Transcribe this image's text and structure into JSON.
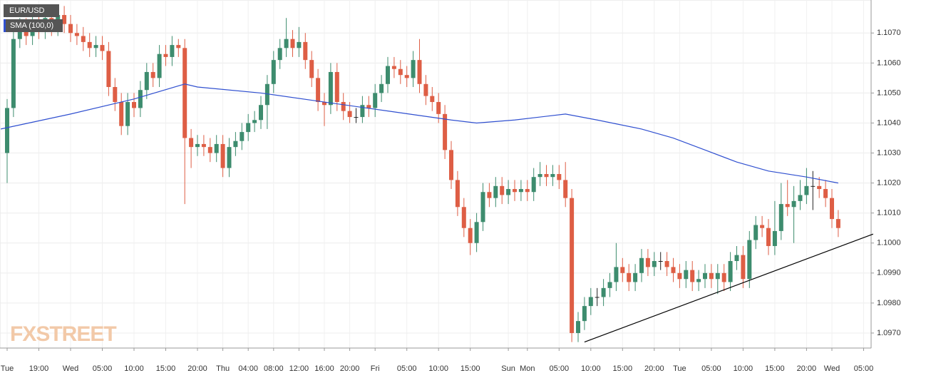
{
  "chart_data": {
    "type": "candlestick",
    "watermark": "FXSTREET",
    "categories": [
      "Tue",
      null,
      null,
      null,
      null,
      "19:00",
      null,
      null,
      null,
      null,
      "Wed",
      null,
      null,
      null,
      null,
      "05:00",
      null,
      null,
      null,
      null,
      "10:00",
      null,
      null,
      null,
      null,
      "15:00",
      null,
      null,
      null,
      null,
      "20:00",
      null,
      null,
      null,
      "Thu",
      null,
      null,
      null,
      "04:00",
      null,
      null,
      null,
      "08:00",
      null,
      null,
      null,
      "12:00",
      null,
      null,
      null,
      "16:00",
      null,
      null,
      null,
      "20:00",
      null,
      null,
      null,
      "Fri",
      null,
      null,
      null,
      null,
      "05:00",
      null,
      null,
      null,
      null,
      "10:00",
      null,
      null,
      null,
      null,
      "15:00",
      null,
      null,
      null,
      null,
      null,
      "Sun",
      null,
      null,
      "Mon",
      null,
      null,
      null,
      null,
      "05:00",
      null,
      null,
      null,
      null,
      "10:00",
      null,
      null,
      null,
      null,
      "15:00",
      null,
      null,
      null,
      null,
      "20:00",
      null,
      null,
      null,
      "Tue",
      null,
      null,
      null,
      null,
      "05:00",
      null,
      null,
      null,
      null,
      "10:00",
      null,
      null,
      null,
      null,
      "15:00",
      null,
      null,
      null,
      null,
      "20:00",
      null,
      null,
      null,
      "Wed",
      null,
      null,
      null,
      null,
      "05:00"
    ],
    "series": [
      {
        "name": "EUR/USD",
        "up_color": "#3d8c6e",
        "down_color": "#de5e45",
        "flat_color": "#222",
        "open": [
          1.103,
          1.1045,
          1.1068,
          1.1072,
          1.1069,
          1.1074,
          1.1071,
          1.1075,
          1.1072,
          1.1076,
          1.1073,
          1.107,
          1.1069,
          1.1067,
          1.1065,
          1.1066,
          1.1064,
          1.1052,
          1.1047,
          1.1039,
          1.1047,
          1.1045,
          1.1051,
          1.1057,
          1.1055,
          1.1063,
          1.1062,
          1.1066,
          1.1065,
          1.1035,
          1.1032,
          1.1033,
          1.1032,
          1.103,
          1.1033,
          1.1025,
          1.1032,
          1.1034,
          1.1037,
          1.104,
          1.1041,
          1.1046,
          1.1053,
          1.1061,
          1.1065,
          1.1068,
          1.1065,
          1.1067,
          1.1061,
          1.1055,
          1.1047,
          1.1046,
          1.1057,
          1.1047,
          1.1044,
          1.1042,
          1.1042,
          1.1046,
          1.1045,
          1.105,
          1.1053,
          1.1059,
          1.1058,
          1.1056,
          1.1055,
          1.1061,
          1.1053,
          1.1049,
          1.1047,
          1.1043,
          1.1031,
          1.1021,
          1.1012,
          1.1005,
          1.1,
          1.1007,
          1.1017,
          1.1015,
          1.1019,
          1.1016,
          1.1018,
          1.1017,
          1.1018,
          1.1017,
          1.1022,
          1.1023,
          1.1022,
          1.1023,
          1.1021,
          1.1015,
          1.097,
          1.0974,
          1.0979,
          1.0982,
          1.0982,
          1.0985,
          1.0987,
          1.0992,
          1.099,
          1.0987,
          1.099,
          1.0995,
          1.0992,
          1.0994,
          1.0994,
          1.0992,
          1.099,
          1.0988,
          1.0991,
          1.0987,
          1.0988,
          1.099,
          1.0988,
          1.099,
          1.0987,
          1.0994,
          1.0996,
          1.0988,
          1.1001,
          1.1006,
          1.1005,
          1.0999,
          1.1004,
          1.1013,
          1.1012,
          1.1014,
          1.1016,
          1.1019,
          1.1019,
          1.1018,
          1.1015,
          1.1008,
          null,
          null,
          null,
          null
        ],
        "high": [
          1.1048,
          1.1071,
          1.1075,
          1.1075,
          1.1077,
          1.1077,
          1.1078,
          1.1078,
          1.1079,
          1.1079,
          1.1076,
          1.1073,
          1.1072,
          1.107,
          1.1069,
          1.1069,
          1.1067,
          1.1055,
          1.105,
          1.105,
          1.105,
          1.1054,
          1.106,
          1.106,
          1.1066,
          1.1066,
          1.1069,
          1.1068,
          1.1068,
          1.1038,
          1.1036,
          1.1036,
          1.1035,
          1.1036,
          1.1036,
          1.1035,
          1.1037,
          1.104,
          1.1043,
          1.1044,
          1.1049,
          1.1056,
          1.1064,
          1.1068,
          1.1075,
          1.1071,
          1.1072,
          1.107,
          1.1064,
          1.1058,
          1.105,
          1.106,
          1.106,
          1.105,
          1.1047,
          1.1045,
          1.1049,
          1.1049,
          1.1053,
          1.1056,
          1.1062,
          1.1062,
          1.1061,
          1.1059,
          1.1064,
          1.1068,
          1.1056,
          1.1052,
          1.105,
          1.1046,
          1.1034,
          1.1024,
          1.1015,
          1.1008,
          1.101,
          1.102,
          1.102,
          1.1022,
          1.1022,
          1.1021,
          1.1021,
          1.1021,
          1.1021,
          1.1025,
          1.1027,
          1.1026,
          1.1026,
          1.1026,
          1.1027,
          1.1018,
          1.0977,
          1.0982,
          1.0985,
          1.0985,
          1.0988,
          1.099,
          1.1,
          1.0995,
          1.0993,
          1.0993,
          1.0998,
          1.0998,
          1.0997,
          1.0997,
          1.0997,
          1.0995,
          1.0993,
          1.0994,
          1.0994,
          1.0991,
          1.0993,
          1.0993,
          1.0993,
          1.0993,
          1.0997,
          1.0999,
          1.0999,
          1.1004,
          1.1009,
          1.1009,
          1.1008,
          1.1014,
          1.102,
          1.1021,
          1.1019,
          1.1021,
          1.1025,
          1.1024,
          1.1022,
          1.1021,
          1.1018,
          1.1011,
          null,
          null,
          null,
          null
        ],
        "low": [
          1.102,
          1.1042,
          1.1065,
          1.1066,
          1.1066,
          1.1068,
          1.1068,
          1.1069,
          1.1069,
          1.107,
          1.1067,
          1.1066,
          1.1064,
          1.1062,
          1.1062,
          1.1061,
          1.1049,
          1.1044,
          1.1036,
          1.1036,
          1.1042,
          1.1042,
          1.1048,
          1.1052,
          1.1052,
          1.1059,
          1.1059,
          1.1062,
          1.1013,
          1.1025,
          1.1029,
          1.1029,
          1.1027,
          1.1027,
          1.1022,
          1.1022,
          1.1029,
          1.1031,
          1.1034,
          1.1037,
          1.1038,
          1.1038,
          1.105,
          1.1058,
          1.1062,
          1.1062,
          1.1062,
          1.1058,
          1.1052,
          1.1044,
          1.1039,
          1.1043,
          1.1044,
          1.1041,
          1.104,
          1.104,
          1.104,
          1.1042,
          1.1042,
          1.1047,
          1.105,
          1.1055,
          1.1053,
          1.1052,
          1.1052,
          1.105,
          1.1046,
          1.1044,
          1.104,
          1.1028,
          1.1018,
          1.1009,
          1.1002,
          1.0996,
          1.0997,
          1.1004,
          1.1012,
          1.1012,
          1.1013,
          1.1013,
          1.1014,
          1.1014,
          1.1014,
          1.1014,
          1.1019,
          1.1019,
          1.1019,
          1.1018,
          1.1012,
          1.0967,
          1.0967,
          1.0971,
          1.0976,
          1.0979,
          1.0979,
          1.0982,
          1.0984,
          1.0987,
          1.0984,
          1.0984,
          1.0987,
          1.0989,
          1.0989,
          1.0991,
          1.0989,
          1.0987,
          1.0985,
          1.0985,
          1.0984,
          1.0984,
          1.0985,
          1.0985,
          1.0983,
          1.0984,
          1.0984,
          1.0991,
          1.0985,
          1.0985,
          1.0998,
          1.1002,
          1.0996,
          1.0996,
          1.1001,
          1.1009,
          1.1,
          1.1011,
          1.1013,
          1.1011,
          1.1015,
          1.1012,
          1.1005,
          1.1002,
          null,
          null,
          null,
          null
        ],
        "close": [
          1.1045,
          1.1068,
          1.1072,
          1.1069,
          1.1074,
          1.1071,
          1.1075,
          1.1072,
          1.1076,
          1.1073,
          1.107,
          1.1069,
          1.1067,
          1.1065,
          1.1066,
          1.1064,
          1.1052,
          1.1047,
          1.1039,
          1.1047,
          1.1045,
          1.1051,
          1.1057,
          1.1055,
          1.1063,
          1.1062,
          1.1066,
          1.1065,
          1.1035,
          1.1032,
          1.1033,
          1.1032,
          1.103,
          1.1033,
          1.1025,
          1.1032,
          1.1034,
          1.1037,
          1.104,
          1.1041,
          1.1046,
          1.1053,
          1.1061,
          1.1065,
          1.1068,
          1.1065,
          1.1067,
          1.1061,
          1.1055,
          1.1047,
          1.1046,
          1.1057,
          1.1047,
          1.1044,
          1.1042,
          1.1042,
          1.1046,
          1.1045,
          1.105,
          1.1053,
          1.1059,
          1.1058,
          1.1056,
          1.1055,
          1.1061,
          1.1053,
          1.1049,
          1.1047,
          1.1043,
          1.1031,
          1.1021,
          1.1012,
          1.1005,
          1.1,
          1.1007,
          1.1017,
          1.1015,
          1.1019,
          1.1016,
          1.1018,
          1.1017,
          1.1018,
          1.1017,
          1.1022,
          1.1023,
          1.1022,
          1.1023,
          1.1021,
          1.1015,
          1.097,
          1.0974,
          1.0979,
          1.0982,
          1.0982,
          1.0985,
          1.0987,
          1.0992,
          1.099,
          1.0987,
          1.099,
          1.0995,
          1.0992,
          1.0994,
          1.0994,
          1.0992,
          1.099,
          1.0988,
          1.0991,
          1.0987,
          1.0988,
          1.099,
          1.0988,
          1.099,
          1.0987,
          1.0994,
          1.0996,
          1.0988,
          1.1001,
          1.1006,
          1.1005,
          1.0999,
          1.1004,
          1.1013,
          1.1012,
          1.1014,
          1.1016,
          1.1019,
          1.1019,
          1.1018,
          1.1015,
          1.1008,
          1.1005,
          null,
          null,
          null,
          null
        ]
      },
      {
        "name": "SMA (100,0)",
        "type": "line",
        "color": "#3050d0",
        "x": [
          -1,
          10,
          20,
          28,
          30,
          40,
          50,
          60,
          70,
          74,
          80,
          88,
          93,
          100,
          105,
          110,
          115,
          120,
          126,
          131
        ],
        "values": [
          1.1038,
          1.1043,
          1.1048,
          1.1053,
          1.1052,
          1.105,
          1.1047,
          1.1044,
          1.1041,
          1.104,
          1.1041,
          1.1043,
          1.1041,
          1.1038,
          1.1035,
          1.1031,
          1.1027,
          1.1024,
          1.1022,
          1.102
        ]
      }
    ],
    "trendline": {
      "color": "#000",
      "x": [
        91,
        136.5
      ],
      "values": [
        1.0967,
        1.1003
      ]
    },
    "ylim": [
      1.0965,
      1.1081
    ],
    "yticks": [
      {
        "value": 1.097,
        "label": "1.0970"
      },
      {
        "value": 1.098,
        "label": "1.0980"
      },
      {
        "value": 1.099,
        "label": "1.0990"
      },
      {
        "value": 1.1,
        "label": "1.1000"
      },
      {
        "value": 1.101,
        "label": "1.1010"
      },
      {
        "value": 1.102,
        "label": "1.1020"
      },
      {
        "value": 1.103,
        "label": "1.1030"
      },
      {
        "value": 1.104,
        "label": "1.1040"
      },
      {
        "value": 1.105,
        "label": "1.1050"
      },
      {
        "value": 1.106,
        "label": "1.1060"
      },
      {
        "value": 1.107,
        "label": "1.1070"
      }
    ],
    "grid": true
  }
}
